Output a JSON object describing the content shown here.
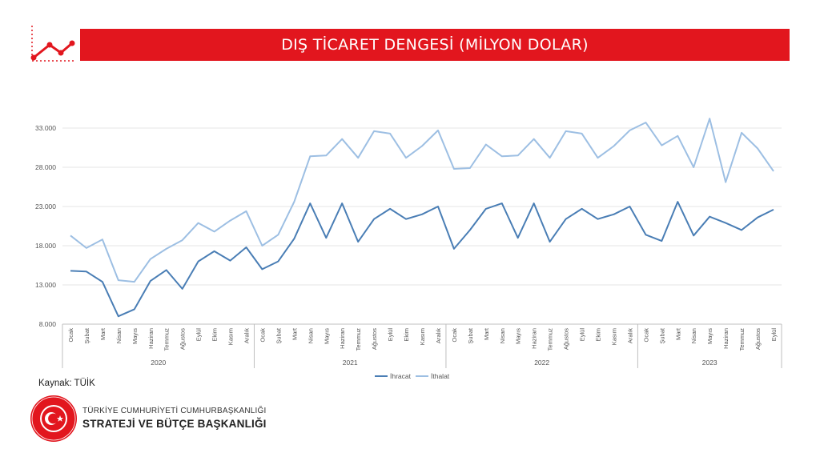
{
  "header": {
    "title": "DIŞ TİCARET DENGESİ (MİLYON DOLAR)"
  },
  "source_text": "Kaynak: TÜİK",
  "org": {
    "line1": "TÜRKİYE CUMHURİYETİ CUMHURBAŞKANLIĞI",
    "line2": "STRATEJİ VE BÜTÇE BAŞKANLIĞI"
  },
  "colors": {
    "brand_red": "#e2161e",
    "export_line": "#4a7eb5",
    "import_line": "#9dbfe3"
  },
  "chart_data": {
    "type": "line",
    "title": "DIŞ TİCARET DENGESİ (MİLYON DOLAR)",
    "xlabel": "",
    "ylabel": "",
    "ylim": [
      8000,
      35000
    ],
    "yticks": [
      "8.000",
      "13.000",
      "18.000",
      "23.000",
      "28.000",
      "33.000"
    ],
    "ytick_values": [
      8000,
      13000,
      18000,
      23000,
      28000,
      33000
    ],
    "grid": true,
    "legend_position": "bottom",
    "groups": [
      {
        "label": "2020",
        "months": [
          "Ocak",
          "Şubat",
          "Mart",
          "Nisan",
          "Mayıs",
          "Haziran",
          "Temmuz",
          "Ağustos",
          "Eylül",
          "Ekim",
          "Kasım",
          "Aralık"
        ]
      },
      {
        "label": "2021",
        "months": [
          "Ocak",
          "Şubat",
          "Mart",
          "Nisan",
          "Mayıs",
          "Haziran",
          "Temmuz",
          "Ağustos",
          "Eylül",
          "Ekim",
          "Kasım",
          "Aralık"
        ]
      },
      {
        "label": "2022",
        "months": [
          "Ocak",
          "Şubat",
          "Mart",
          "Nisan",
          "Mayıs",
          "Haziran",
          "Temmuz",
          "Ağustos",
          "Eylül",
          "Ekim",
          "Kasım",
          "Aralık"
        ]
      },
      {
        "label": "2023",
        "months": [
          "Ocak",
          "Şubat",
          "Mart",
          "Nisan",
          "Mayıs",
          "Haziran",
          "Temmuz",
          "Ağustos",
          "Eylül"
        ]
      }
    ],
    "series": [
      {
        "name": "İhracat",
        "values": [
          14800,
          14700,
          13400,
          9000,
          9900,
          13500,
          14900,
          12500,
          16000,
          17300,
          16100,
          17800,
          15000,
          16000,
          18900,
          23400,
          19000,
          23400,
          18500,
          21400,
          22700,
          21400,
          22000,
          23000,
          17600,
          20000,
          22700,
          23400,
          19000,
          23400,
          18500,
          21400,
          22700,
          21400,
          22000,
          23000,
          19400,
          18600,
          23600,
          19300,
          21700,
          20900,
          20000,
          21600,
          22600
        ]
      },
      {
        "name": "İthalat",
        "values": [
          19300,
          17700,
          18800,
          13600,
          13400,
          16300,
          17600,
          18700,
          20900,
          19800,
          21200,
          22400,
          18000,
          19400,
          23600,
          29400,
          29500,
          31600,
          29200,
          32600,
          32300,
          29200,
          30700,
          32700,
          27800,
          27900,
          30900,
          29400,
          29500,
          31600,
          29200,
          32600,
          32300,
          29200,
          30700,
          32700,
          33700,
          30800,
          32000,
          28000,
          34200,
          26100,
          32400,
          30400,
          27500
        ]
      }
    ]
  }
}
